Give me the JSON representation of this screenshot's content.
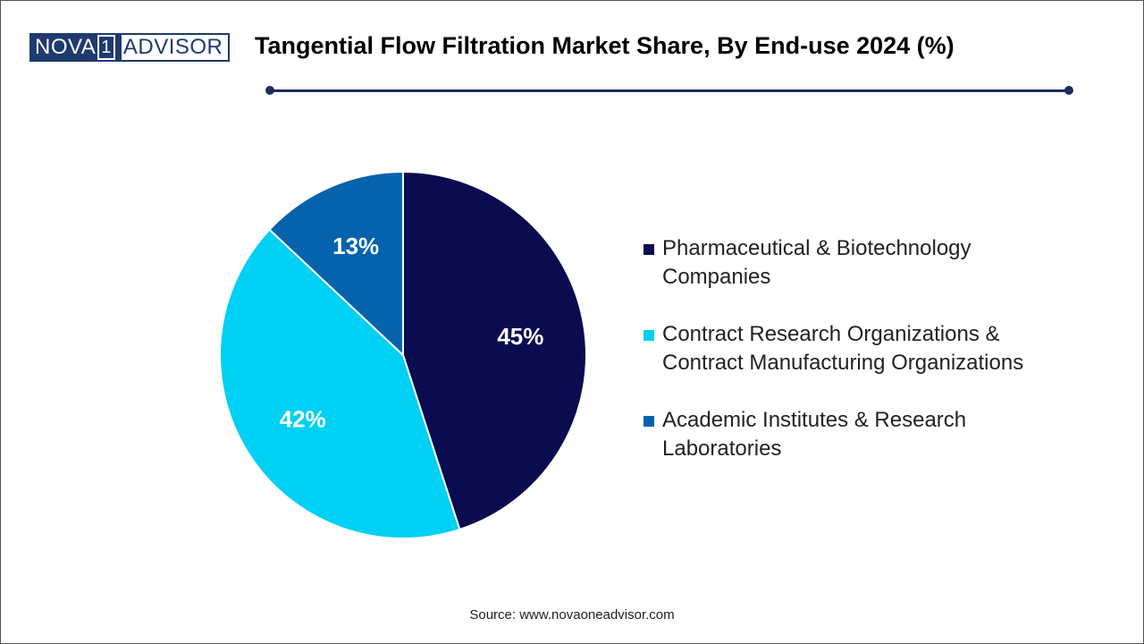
{
  "logo": {
    "left": "NOVA",
    "number": "1",
    "right": "ADVISOR"
  },
  "title": "Tangential Flow Filtration Market Share, By End-use 2024 (%)",
  "source": "Source: www.novaoneadvisor.com",
  "colors": {
    "rule": "#1f2d5a",
    "logo": "#1f3a6e"
  },
  "chart_data": {
    "type": "pie",
    "title": "Tangential Flow Filtration Market Share, By End-use 2024 (%)",
    "unit": "%",
    "slices": [
      {
        "name": "Pharmaceutical & Biotechnology Companies",
        "legend_lines": [
          "Pharmaceutical & Biotechnology",
          "Companies"
        ],
        "value": 45,
        "label": "45%",
        "color": "#0b0b4f"
      },
      {
        "name": "Contract Research Organizations & Contract Manufacturing Organizations",
        "legend_lines": [
          "Contract Research Organizations &",
          "Contract Manufacturing Organizations"
        ],
        "value": 42,
        "label": "42%",
        "color": "#00d0f3"
      },
      {
        "name": "Academic Institutes & Research Laboratories",
        "legend_lines": [
          "Academic Institutes & Research",
          "Laboratories"
        ],
        "value": 13,
        "label": "13%",
        "color": "#0563ad"
      }
    ],
    "start": "12 o'clock",
    "direction": "clockwise",
    "legend_position": "right"
  }
}
